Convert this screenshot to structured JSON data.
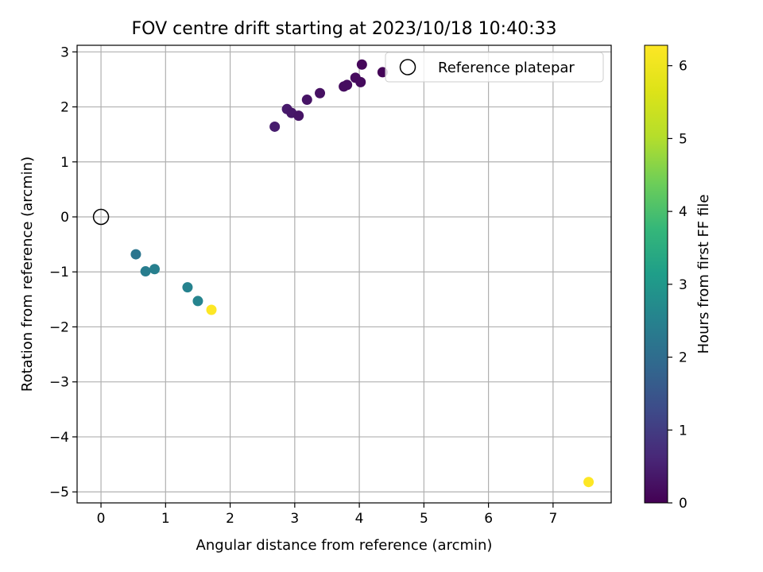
{
  "chart_data": {
    "type": "scatter",
    "title": "FOV centre drift starting at 2023/10/18 10:40:33",
    "xlabel": "Angular distance from reference (arcmin)",
    "ylabel": "Rotation from reference (arcmin)",
    "xlim": [
      -0.37,
      7.9
    ],
    "ylim": [
      -5.2,
      3.12
    ],
    "xticks": [
      0,
      1,
      2,
      3,
      4,
      5,
      6,
      7
    ],
    "yticks": [
      3,
      2,
      1,
      0,
      -1,
      -2,
      -3,
      -4,
      -5
    ],
    "ytick_labels": [
      "3",
      "2",
      "1",
      "0",
      "−1",
      "−2",
      "−3",
      "−4",
      "−5"
    ],
    "grid": true,
    "reference": {
      "name": "Reference platepar",
      "x": 0,
      "y": 0
    },
    "legend": {
      "placement": "top-right",
      "entries": [
        "Reference platepar"
      ]
    },
    "colorbar": {
      "label": "Hours from first FF file",
      "range": [
        0,
        6.28
      ],
      "ticks": [
        0,
        1,
        2,
        3,
        4,
        5,
        6
      ],
      "colormap": "viridis"
    },
    "points": [
      {
        "x": 2.69,
        "y": 1.64,
        "h": 0.45
      },
      {
        "x": 2.88,
        "y": 1.96,
        "h": 0.4
      },
      {
        "x": 2.95,
        "y": 1.89,
        "h": 0.35
      },
      {
        "x": 3.06,
        "y": 1.84,
        "h": 0.3
      },
      {
        "x": 3.19,
        "y": 2.13,
        "h": 0.3
      },
      {
        "x": 3.39,
        "y": 2.25,
        "h": 0.25
      },
      {
        "x": 3.76,
        "y": 2.37,
        "h": 0.2
      },
      {
        "x": 3.81,
        "y": 2.4,
        "h": 0.2
      },
      {
        "x": 3.94,
        "y": 2.53,
        "h": 0.15
      },
      {
        "x": 4.02,
        "y": 2.45,
        "h": 0.15
      },
      {
        "x": 4.04,
        "y": 2.77,
        "h": 0.1
      },
      {
        "x": 4.36,
        "y": 2.63,
        "h": 0.05
      },
      {
        "x": 0.54,
        "y": -0.68,
        "h": 2.2
      },
      {
        "x": 0.69,
        "y": -0.99,
        "h": 2.4
      },
      {
        "x": 0.83,
        "y": -0.95,
        "h": 2.45
      },
      {
        "x": 1.34,
        "y": -1.28,
        "h": 2.5
      },
      {
        "x": 1.5,
        "y": -1.53,
        "h": 2.55
      },
      {
        "x": 1.71,
        "y": -1.69,
        "h": 6.28
      },
      {
        "x": 7.55,
        "y": -4.82,
        "h": 6.28
      }
    ]
  }
}
